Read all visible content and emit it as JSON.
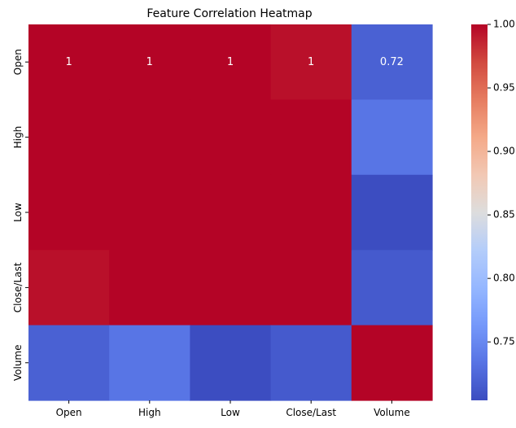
{
  "chart_data": {
    "type": "heatmap",
    "title": "Feature Correlation Heatmap",
    "x_labels": [
      "Open",
      "High",
      "Low",
      "Close/Last",
      "Volume"
    ],
    "y_labels": [
      "Open",
      "High",
      "Low",
      "Close/Last",
      "Volume"
    ],
    "values": [
      [
        1.0,
        1.0,
        1.0,
        0.995,
        0.72
      ],
      [
        1.0,
        1.0,
        1.0,
        1.0,
        0.735
      ],
      [
        1.0,
        1.0,
        1.0,
        1.0,
        0.705
      ],
      [
        0.995,
        1.0,
        1.0,
        1.0,
        0.715
      ],
      [
        0.72,
        0.735,
        0.705,
        0.715,
        1.0
      ]
    ],
    "annotations": [
      {
        "row": 0,
        "col": 0,
        "text": "1"
      },
      {
        "row": 0,
        "col": 1,
        "text": "1"
      },
      {
        "row": 0,
        "col": 2,
        "text": "1"
      },
      {
        "row": 0,
        "col": 3,
        "text": "1"
      },
      {
        "row": 0,
        "col": 4,
        "text": "0.72"
      }
    ],
    "colormap": "coolwarm",
    "vmin": 0.704,
    "vmax": 1.0,
    "colorbar_ticks": [
      "0.75",
      "0.80",
      "0.85",
      "0.90",
      "0.95",
      "1.00"
    ],
    "colorbar_tick_values": [
      0.75,
      0.8,
      0.85,
      0.9,
      0.95,
      1.0
    ],
    "xlabel": "",
    "ylabel": ""
  },
  "colors": {
    "text_light": "#ffffff",
    "text_dark": "#262626",
    "axis": "#000000"
  }
}
